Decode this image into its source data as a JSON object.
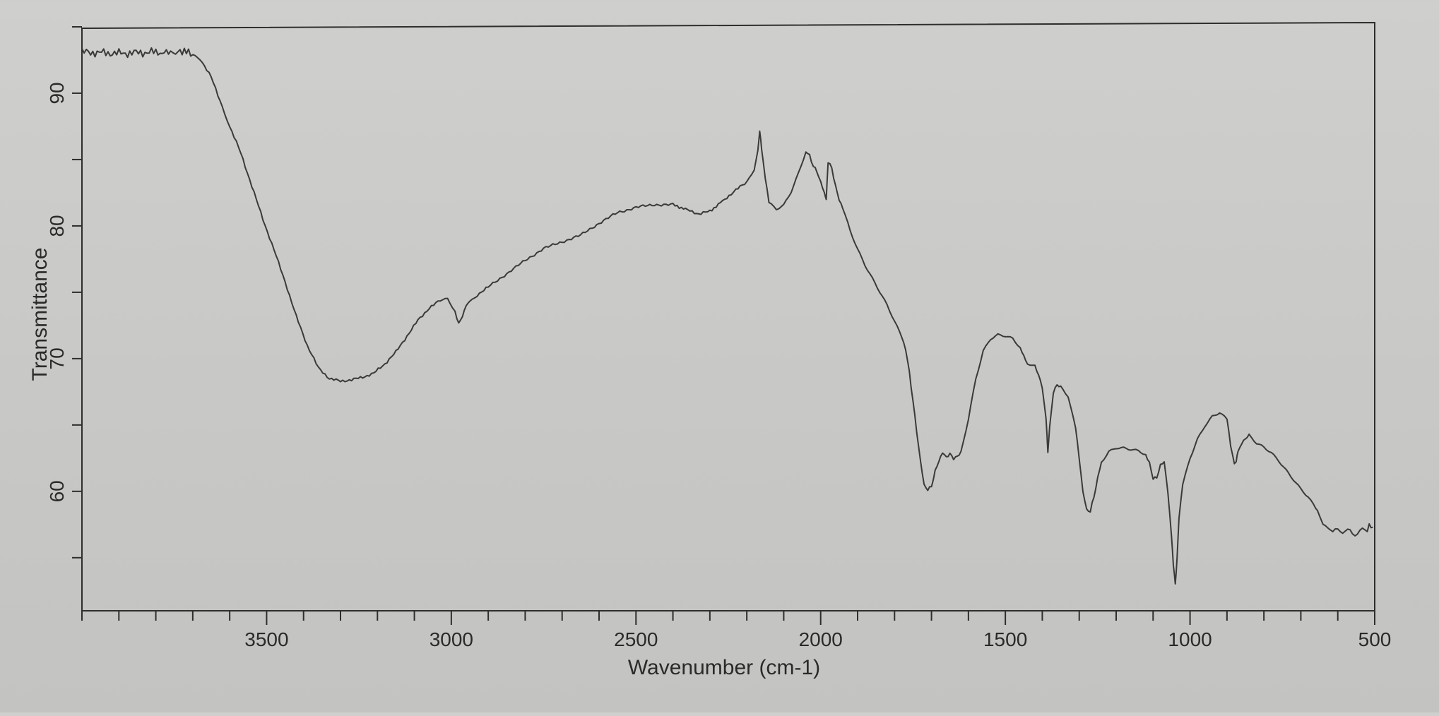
{
  "chart_data": {
    "type": "line",
    "title": "",
    "xlabel": "Wavenumber (cm-1)",
    "ylabel": "Transmittance",
    "x_reversed": true,
    "xlim": [
      4000,
      500
    ],
    "ylim": [
      51,
      95
    ],
    "x_major_ticks": [
      3500,
      3000,
      2500,
      2000,
      1500,
      1000,
      500
    ],
    "x_tick_step": 100,
    "y_major_ticks": [
      60,
      70,
      80,
      90
    ],
    "y_minor_ticks": [
      55,
      65,
      75,
      85,
      95
    ],
    "grid": false,
    "legend": "none",
    "line_color": "#3a3a3a",
    "series": [
      {
        "x": [
          4000,
          3900,
          3800,
          3760,
          3740,
          3700,
          3680,
          3650,
          3620,
          3600,
          3570,
          3540,
          3510,
          3480,
          3450,
          3420,
          3390,
          3360,
          3330,
          3300,
          3270,
          3240,
          3210,
          3180,
          3150,
          3120,
          3090,
          3060,
          3030,
          3010,
          2990,
          2980,
          2970,
          2960,
          2950,
          2930,
          2900,
          2850,
          2800,
          2750,
          2700,
          2650,
          2600,
          2550,
          2500,
          2450,
          2400,
          2360,
          2330,
          2300,
          2260,
          2230,
          2200,
          2180,
          2170,
          2165,
          2160,
          2150,
          2140,
          2120,
          2100,
          2080,
          2060,
          2040,
          2030,
          2020,
          2010,
          2000,
          1990,
          1985,
          1980,
          1970,
          1960,
          1950,
          1940,
          1920,
          1900,
          1880,
          1860,
          1840,
          1820,
          1800,
          1780,
          1770,
          1760,
          1750,
          1740,
          1730,
          1720,
          1710,
          1700,
          1690,
          1680,
          1670,
          1660,
          1650,
          1640,
          1630,
          1620,
          1600,
          1580,
          1560,
          1540,
          1520,
          1500,
          1480,
          1460,
          1450,
          1440,
          1420,
          1410,
          1400,
          1390,
          1385,
          1380,
          1370,
          1360,
          1350,
          1330,
          1310,
          1300,
          1290,
          1280,
          1270,
          1260,
          1250,
          1240,
          1220,
          1200,
          1180,
          1160,
          1140,
          1120,
          1110,
          1100,
          1090,
          1080,
          1070,
          1060,
          1050,
          1045,
          1040,
          1035,
          1030,
          1020,
          1000,
          980,
          960,
          940,
          920,
          900,
          890,
          880,
          875,
          870,
          860,
          850,
          840,
          820,
          800,
          780,
          760,
          740,
          720,
          700,
          680,
          660,
          650,
          640,
          620,
          600,
          580,
          560,
          540,
          520,
          505
        ],
        "y": [
          93.1,
          93.0,
          93.1,
          93.0,
          93.3,
          92.9,
          92.6,
          91.2,
          89.0,
          87.5,
          85.5,
          83.0,
          80.5,
          78.2,
          75.8,
          73.2,
          71.0,
          69.3,
          68.5,
          68.3,
          68.4,
          68.6,
          68.9,
          69.6,
          70.5,
          71.7,
          72.9,
          73.8,
          74.4,
          74.5,
          73.6,
          72.6,
          73.2,
          74.0,
          74.3,
          74.8,
          75.4,
          76.4,
          77.4,
          78.3,
          78.8,
          79.3,
          80.2,
          81.0,
          81.4,
          81.6,
          81.6,
          81.2,
          80.9,
          81.1,
          82.0,
          82.7,
          83.3,
          84.3,
          85.6,
          87.2,
          85.8,
          83.6,
          81.8,
          81.3,
          81.6,
          82.6,
          84.0,
          85.6,
          85.3,
          84.5,
          84.1,
          83.3,
          82.5,
          82.0,
          84.8,
          84.4,
          83.0,
          82.0,
          81.3,
          79.6,
          78.2,
          77.0,
          76.0,
          75.0,
          74.0,
          72.8,
          71.6,
          70.7,
          69.0,
          66.8,
          64.5,
          62.3,
          60.5,
          60.1,
          60.4,
          61.5,
          62.3,
          62.9,
          62.6,
          62.8,
          62.5,
          62.6,
          63.0,
          65.5,
          68.5,
          70.6,
          71.5,
          71.8,
          71.7,
          71.5,
          70.8,
          70.2,
          69.6,
          69.4,
          68.8,
          67.8,
          65.5,
          63.0,
          64.8,
          67.5,
          68.0,
          67.9,
          67.2,
          64.8,
          62.5,
          60.0,
          58.6,
          58.5,
          59.6,
          61.0,
          62.2,
          63.0,
          63.3,
          63.3,
          63.2,
          63.1,
          62.8,
          62.1,
          61.0,
          61.0,
          62.0,
          62.2,
          60.0,
          56.5,
          54.5,
          53.0,
          55.0,
          58.0,
          60.5,
          62.5,
          63.9,
          64.9,
          65.6,
          65.9,
          65.4,
          63.5,
          62.0,
          62.3,
          63.0,
          63.6,
          64.0,
          64.2,
          63.6,
          63.3,
          62.9,
          62.3,
          61.6,
          60.9,
          60.2,
          59.6,
          58.8,
          58.2,
          57.5,
          57.2,
          57.1,
          57.2,
          56.9,
          57.0,
          57.2,
          57.3
        ]
      }
    ]
  }
}
